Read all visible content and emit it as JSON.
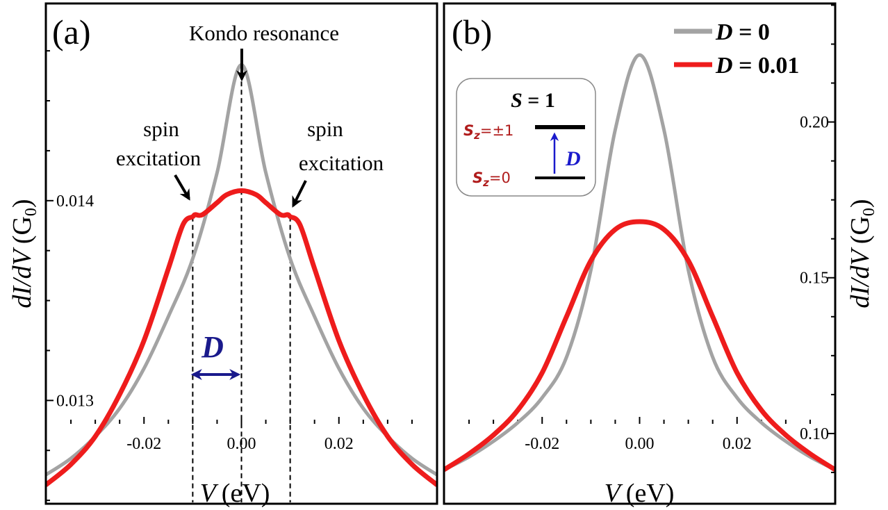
{
  "chart_data": [
    {
      "type": "line",
      "panel_label": "(a)",
      "xlabel_var": "V",
      "xlabel_unit": "(eV)",
      "ylabel_var": "dI/dV",
      "ylabel_unit": "(G",
      "ylabel_sub": "0",
      "ylabel_close": ")",
      "xlim": [
        -0.04,
        0.04
      ],
      "ylim": [
        0.01249,
        0.01498
      ],
      "xticks": [
        -0.02,
        0.0,
        0.02
      ],
      "xtick_labels": [
        "-0.02",
        "0.00",
        "0.02"
      ],
      "yticks": [
        0.013,
        0.014
      ],
      "ytick_labels": [
        "0.013",
        "0.014"
      ],
      "series": [
        {
          "name": "D = 0",
          "color": "#a3a3a3",
          "x": [
            -0.04,
            -0.035,
            -0.03,
            -0.025,
            -0.02,
            -0.015,
            -0.01,
            -0.005,
            0.0,
            0.005,
            0.01,
            0.015,
            0.02,
            0.025,
            0.03,
            0.035,
            0.04
          ],
          "y": [
            0.01263,
            0.01271,
            0.01282,
            0.01296,
            0.01316,
            0.01342,
            0.01371,
            0.01414,
            0.01468,
            0.01414,
            0.01371,
            0.01342,
            0.01316,
            0.01296,
            0.01282,
            0.01271,
            0.01263
          ]
        },
        {
          "name": "D = 0.01",
          "color": "#ee1c1c",
          "x": [
            -0.04,
            -0.035,
            -0.03,
            -0.025,
            -0.02,
            -0.015,
            -0.012,
            -0.01,
            -0.0095,
            -0.008,
            -0.005,
            -0.003,
            0.0,
            0.003,
            0.005,
            0.008,
            0.0095,
            0.01,
            0.012,
            0.015,
            0.02,
            0.025,
            0.03,
            0.035,
            0.04
          ],
          "y": [
            0.01258,
            0.01268,
            0.01282,
            0.01303,
            0.0133,
            0.01366,
            0.01388,
            0.01392,
            0.01393,
            0.01393,
            0.01399,
            0.01403,
            0.01405,
            0.01403,
            0.01399,
            0.01393,
            0.01393,
            0.01392,
            0.01388,
            0.01366,
            0.0133,
            0.01303,
            0.01282,
            0.01268,
            0.01258
          ]
        }
      ],
      "annotations": {
        "kondo": "Kondo resonance",
        "spin_left": [
          "spin",
          "excitation"
        ],
        "spin_right": [
          "spin",
          "excitation"
        ],
        "d_label": "D"
      },
      "dashed_lines_x": [
        -0.01,
        0.0,
        0.01
      ]
    },
    {
      "type": "line",
      "panel_label": "(b)",
      "xlabel_var": "V",
      "xlabel_unit": "(eV)",
      "ylabel_var": "dI/dV",
      "ylabel_unit": "(G",
      "ylabel_sub": "0",
      "ylabel_close": ")",
      "xlim": [
        -0.04,
        0.04
      ],
      "ylim": [
        0.0779,
        0.2376
      ],
      "xticks": [
        -0.02,
        0.0,
        0.02
      ],
      "xtick_labels": [
        "-0.02",
        "0.00",
        "0.02"
      ],
      "yticks": [
        0.1,
        0.15,
        0.2
      ],
      "ytick_labels": [
        "0.10",
        "0.15",
        "0.20"
      ],
      "legend": {
        "placement": "top-right",
        "entries": [
          {
            "label_var": "D",
            "label_rest": " = 0",
            "color": "#a3a3a3"
          },
          {
            "label_var": "D",
            "label_rest": " = 0.01",
            "color": "#ee1c1c"
          }
        ]
      },
      "series": [
        {
          "name": "D = 0",
          "color": "#a3a3a3",
          "x": [
            -0.04,
            -0.035,
            -0.03,
            -0.025,
            -0.02,
            -0.015,
            -0.01,
            -0.005,
            0.0,
            0.005,
            0.01,
            0.015,
            0.02,
            0.025,
            0.03,
            0.035,
            0.04
          ],
          "y": [
            0.0885,
            0.0925,
            0.0975,
            0.1035,
            0.1115,
            0.1245,
            0.1525,
            0.1975,
            0.2215,
            0.1975,
            0.1525,
            0.1245,
            0.1115,
            0.1035,
            0.0975,
            0.0925,
            0.0885
          ]
        },
        {
          "name": "D = 0.01",
          "color": "#ee1c1c",
          "x": [
            -0.04,
            -0.035,
            -0.03,
            -0.025,
            -0.02,
            -0.015,
            -0.01,
            -0.005,
            0.0,
            0.005,
            0.01,
            0.015,
            0.02,
            0.025,
            0.03,
            0.035,
            0.04
          ],
          "y": [
            0.0885,
            0.0935,
            0.0995,
            0.1075,
            0.1195,
            0.1375,
            0.1555,
            0.1655,
            0.168,
            0.1655,
            0.1555,
            0.1375,
            0.1195,
            0.1075,
            0.0995,
            0.0935,
            0.0885
          ]
        }
      ],
      "inset": {
        "title_var": "S",
        "title_rest": " = 1",
        "upper_level": "S",
        "upper_sub": "z",
        "upper_value": "=±1",
        "lower_level": "S",
        "lower_sub": "z",
        "lower_value": "=0",
        "gap_label": "D"
      }
    }
  ]
}
